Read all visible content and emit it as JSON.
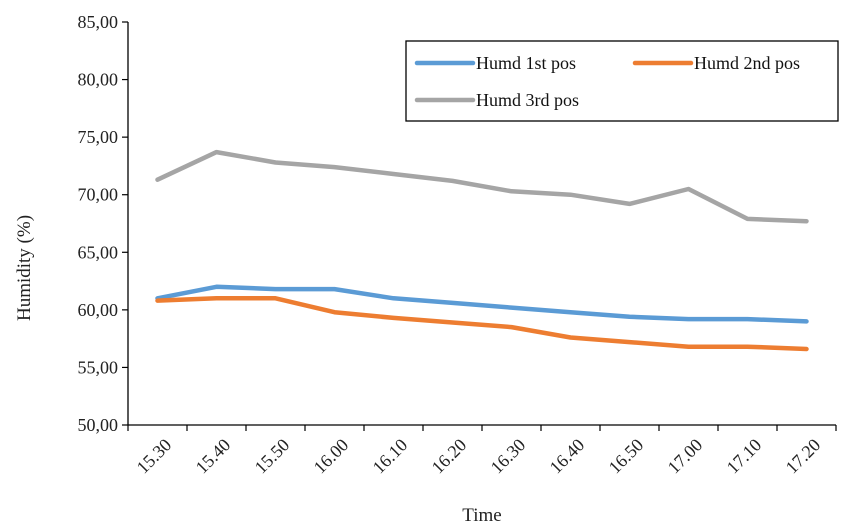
{
  "chart_data": {
    "type": "line",
    "title": "",
    "xlabel": "Time",
    "ylabel": "Humidity (%)",
    "categories": [
      "15.30",
      "15.40",
      "15.50",
      "16.00",
      "16.10",
      "16.20",
      "16.30",
      "16.40",
      "16.50",
      "17.00",
      "17.10",
      "17.20"
    ],
    "ylim": [
      50,
      85
    ],
    "yticks": [
      "50,00",
      "55,00",
      "60,00",
      "65,00",
      "70,00",
      "75,00",
      "80,00",
      "85,00"
    ],
    "grid": false,
    "legend_position": "top-right",
    "series": [
      {
        "name": "Humd 1st pos",
        "color": "#5B9BD5",
        "values": [
          61.0,
          62.0,
          61.8,
          61.8,
          61.0,
          60.6,
          60.2,
          59.8,
          59.4,
          59.2,
          59.2,
          59.0
        ]
      },
      {
        "name": "Humd 2nd pos",
        "color": "#ED7D31",
        "values": [
          60.8,
          61.0,
          61.0,
          59.8,
          59.3,
          58.9,
          58.5,
          57.6,
          57.2,
          56.8,
          56.8,
          56.6
        ]
      },
      {
        "name": "Humd 3rd pos",
        "color": "#A5A5A5",
        "values": [
          71.3,
          73.7,
          72.8,
          72.4,
          71.8,
          71.2,
          70.3,
          70.0,
          69.2,
          70.5,
          67.9,
          67.7
        ]
      }
    ]
  }
}
